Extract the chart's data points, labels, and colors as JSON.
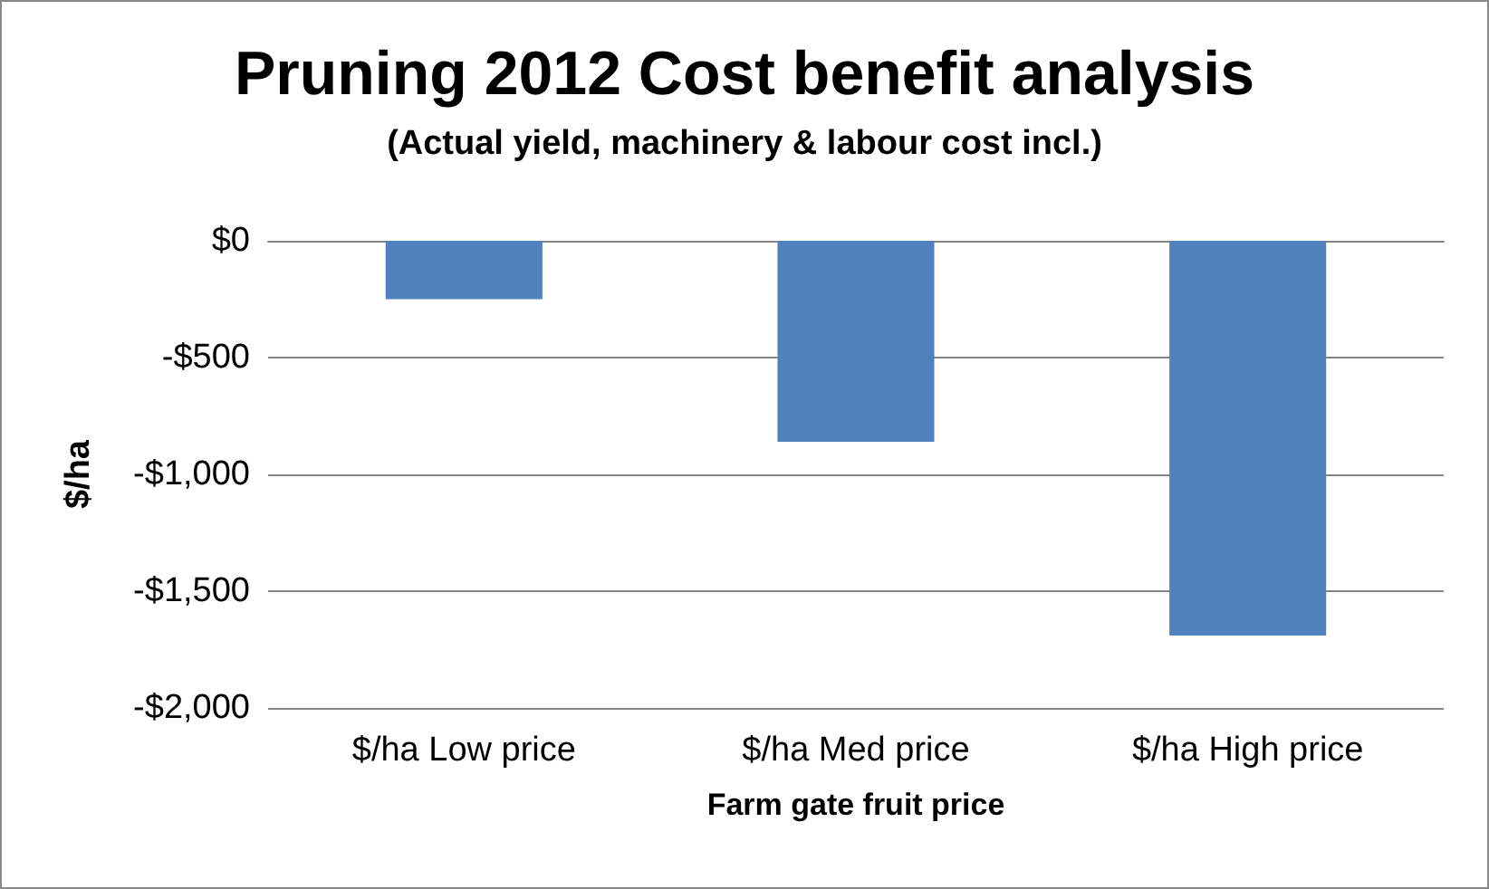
{
  "chart_data": {
    "type": "bar",
    "title": "Pruning 2012 Cost benefit analysis",
    "subtitle": "(Actual yield, machinery & labour cost incl.)",
    "xlabel": "Farm gate fruit price",
    "ylabel": "$/ha",
    "categories": [
      "$/ha Low price",
      "$/ha Med price",
      "$/ha High price"
    ],
    "values": [
      -250,
      -860,
      -1690
    ],
    "color": "#4f81bd",
    "ylim": [
      -2000,
      0
    ],
    "yticks": [
      {
        "value": -2000,
        "label": "-$2,000"
      },
      {
        "value": -1500,
        "label": "-$1,500"
      },
      {
        "value": -1000,
        "label": "-$1,000"
      },
      {
        "value": -500,
        "label": "-$500"
      },
      {
        "value": 0,
        "label": "$0"
      }
    ],
    "grid": "y"
  }
}
